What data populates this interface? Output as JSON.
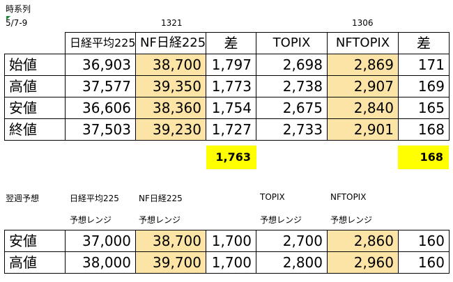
{
  "title": "時系列",
  "date": "5/7-9",
  "codes": {
    "c1321": "1321",
    "c1306": "1306"
  },
  "headers": [
    "日経平均225",
    "NF日経225",
    "差",
    "TOPIX",
    "NFTOPIX",
    "差"
  ],
  "rows": [
    {
      "label": "始値",
      "v": [
        "36,903",
        "38,700",
        "1,797",
        "2,698",
        "2,869",
        "171"
      ]
    },
    {
      "label": "高値",
      "v": [
        "37,577",
        "39,350",
        "1,773",
        "2,738",
        "2,907",
        "169"
      ]
    },
    {
      "label": "安値",
      "v": [
        "36,606",
        "38,360",
        "1,754",
        "2,675",
        "2,840",
        "165"
      ]
    },
    {
      "label": "終値",
      "v": [
        "37,503",
        "39,230",
        "1,727",
        "2,733",
        "2,901",
        "168"
      ]
    }
  ],
  "totals": {
    "diff1": "1,763",
    "diff2": "168"
  },
  "forecast": {
    "label": "翌週予想",
    "h1": "日経平均225",
    "h2": "NF日経225",
    "h3": "TOPIX",
    "h4": "NFTOPIX",
    "range": "予想レンジ",
    "rows": [
      {
        "label": "安値",
        "v": [
          "37,000",
          "38,700",
          "1,700",
          "2,700",
          "2,860",
          "160"
        ]
      },
      {
        "label": "高値",
        "v": [
          "38,000",
          "39,700",
          "1,700",
          "2,800",
          "2,960",
          "160"
        ]
      }
    ]
  },
  "colors": {
    "highlight": "#fce4a6",
    "total": "#ffff00"
  }
}
